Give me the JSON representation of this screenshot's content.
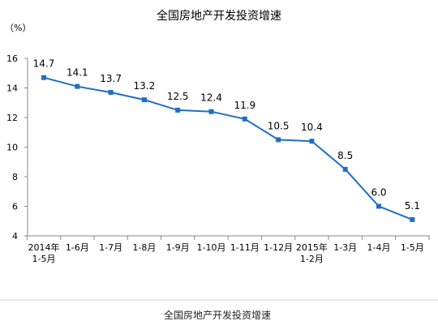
{
  "chart_data": {
    "type": "line",
    "title": "全国房地产开发投资增速",
    "caption": "全国房地产开发投资增速",
    "ylabel": "（%）",
    "xlabel": "",
    "ylim": [
      4,
      16
    ],
    "yticks": [
      "4",
      "6",
      "8",
      "10",
      "12",
      "14",
      "16"
    ],
    "grid": false,
    "legend": "none",
    "colors": {
      "line": "#1f6fc6",
      "marker": "#1f6fc6",
      "axis": "#888888",
      "divider": "#cccccc"
    },
    "categories": [
      [
        "2014年",
        "1-5月"
      ],
      [
        "1-6月"
      ],
      [
        "1-7月"
      ],
      [
        "1-8月"
      ],
      [
        "1-9月"
      ],
      [
        "1-10月"
      ],
      [
        "1-11月"
      ],
      [
        "1-12月"
      ],
      [
        "2015年",
        "1-2月"
      ],
      [
        "1-3月"
      ],
      [
        "1-4月"
      ],
      [
        "1-5月"
      ]
    ],
    "series": [
      {
        "values": [
          14.7,
          14.1,
          13.7,
          13.2,
          12.5,
          12.4,
          11.9,
          10.5,
          10.4,
          8.5,
          6.0,
          5.1
        ],
        "labels": [
          "14.7",
          "14.1",
          "13.7",
          "13.2",
          "12.5",
          "12.4",
          "11.9",
          "10.5",
          "10.4",
          "8.5",
          "6.0",
          "5.1"
        ]
      }
    ]
  }
}
